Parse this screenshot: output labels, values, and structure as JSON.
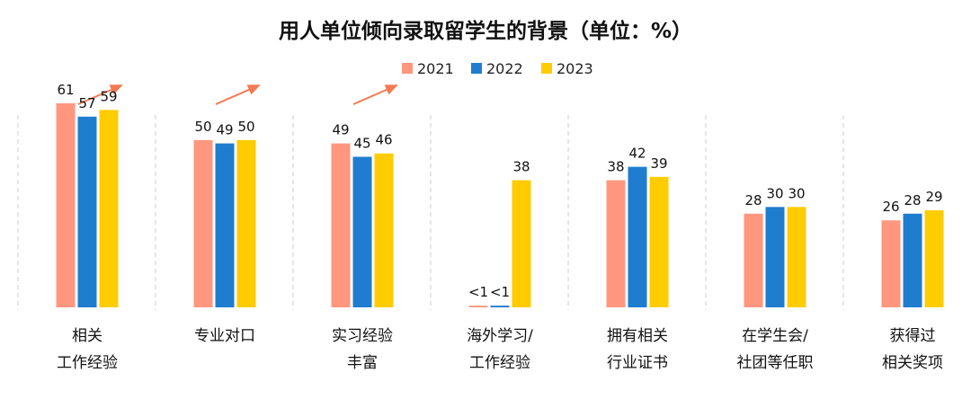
{
  "chart_data": {
    "type": "bar",
    "title": "用人单位倾向录取留学生的背景（单位：%）",
    "xlabel": "",
    "ylabel": "",
    "ylim": [
      0,
      65
    ],
    "grid": false,
    "legend": "top-center",
    "categories": [
      [
        "相关",
        "工作经验"
      ],
      [
        "专业对口"
      ],
      [
        "实习经验",
        "丰富"
      ],
      [
        "海外学习/",
        "工作经验"
      ],
      [
        "拥有相关",
        "行业证书"
      ],
      [
        "在学生会/",
        "社团等任职"
      ],
      [
        "获得过",
        "相关奖项"
      ]
    ],
    "series": [
      {
        "name": "2021",
        "color": "#FF977F",
        "values": [
          61,
          50,
          49,
          0.5,
          38,
          28,
          26
        ],
        "labels": [
          "61",
          "50",
          "49",
          "<1",
          "38",
          "28",
          "26"
        ]
      },
      {
        "name": "2022",
        "color": "#1F7DCF",
        "values": [
          57,
          49,
          45,
          0.5,
          42,
          30,
          28
        ],
        "labels": [
          "57",
          "49",
          "45",
          "<1",
          "42",
          "30",
          "28"
        ]
      },
      {
        "name": "2023",
        "color": "#FFCC00",
        "values": [
          59,
          50,
          46,
          38,
          39,
          30,
          29
        ],
        "labels": [
          "59",
          "50",
          "46",
          "38",
          "39",
          "30",
          "29"
        ]
      }
    ],
    "trend_arrow_groups": [
      0,
      1,
      2
    ],
    "arrow_color": "#F47A52",
    "separator_color": "#CCCCCC"
  }
}
